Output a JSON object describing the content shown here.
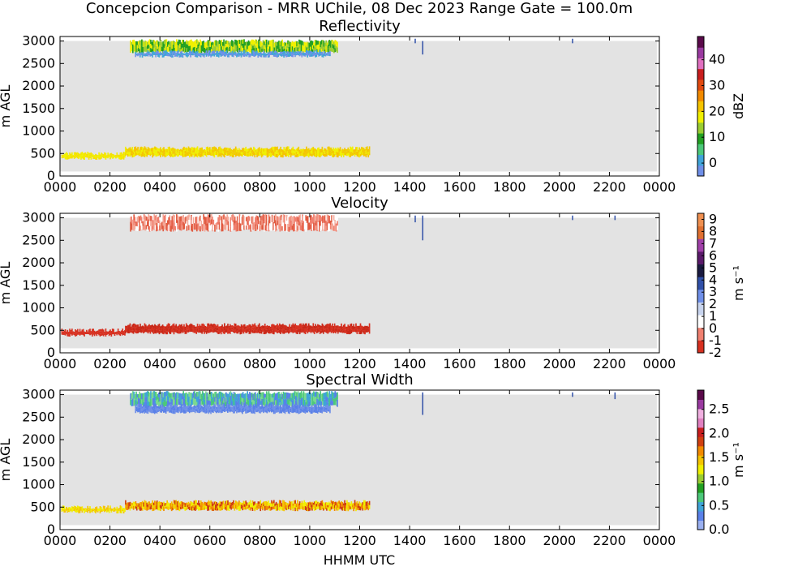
{
  "title": "Concepcion Comparison - MRR UChile, 08 Dec 2023 Range Gate = 100.0m",
  "xlabel": "HHMM UTC",
  "colors": {
    "background_fill": "#e3e3e3",
    "axes_frame": "#000000"
  },
  "chart_data": [
    {
      "type": "heatmap",
      "title": "Reflectivity",
      "ylabel": "m AGL",
      "xlim_hours": [
        0,
        24
      ],
      "ylim": [
        0,
        3100
      ],
      "x_ticks": [
        "0000",
        "0200",
        "0400",
        "0600",
        "0800",
        "1000",
        "1200",
        "1400",
        "1600",
        "1800",
        "2000",
        "2200",
        "0000"
      ],
      "y_ticks": [
        0,
        500,
        1000,
        1500,
        2000,
        2500,
        3000
      ],
      "colorbar": {
        "label": "dBZ",
        "range": [
          -5,
          49
        ],
        "ticks": [
          "0",
          "10",
          "20",
          "30",
          "40"
        ],
        "tick_values": [
          0,
          10,
          20,
          30,
          40
        ],
        "colors": [
          "#6f8fe8",
          "#3fa4d8",
          "#4cc87a",
          "#22a022",
          "#9acd32",
          "#f0f000",
          "#f5c400",
          "#f28a00",
          "#e24a10",
          "#c81e1e",
          "#e070c0",
          "#9a3aa0",
          "#5a0a4a"
        ]
      },
      "layers": [
        {
          "name": "upper-cloud",
          "start": 2.8,
          "end": 11.1,
          "bottom": 2750,
          "top": 3000,
          "colors": [
            "#22a022",
            "#9acd32",
            "#f0f000"
          ]
        },
        {
          "name": "upper-cloud-fringe",
          "start": 3.0,
          "end": 10.8,
          "bottom": 2660,
          "top": 2760,
          "colors": [
            "#3fa4d8",
            "#6f8fe8"
          ]
        },
        {
          "name": "low-cloud-early",
          "start": 0.05,
          "end": 2.6,
          "bottom": 390,
          "top": 500,
          "colors": [
            "#f0f000",
            "#f5e000"
          ]
        },
        {
          "name": "low-cloud-main",
          "start": 2.6,
          "end": 12.4,
          "bottom": 440,
          "top": 620,
          "colors": [
            "#f5c400",
            "#f0d000",
            "#f0f000"
          ]
        }
      ],
      "sparse_echoes": [
        {
          "x": 14.5,
          "bottom": 2700,
          "top": 3000
        },
        {
          "x": 14.2,
          "bottom": 2950,
          "top": 3050
        },
        {
          "x": 20.5,
          "bottom": 2950,
          "top": 3050
        }
      ]
    },
    {
      "type": "heatmap",
      "title": "Velocity",
      "ylabel": "m AGL",
      "xlim_hours": [
        0,
        24
      ],
      "ylim": [
        0,
        3100
      ],
      "x_ticks": [
        "0000",
        "0200",
        "0400",
        "0600",
        "0800",
        "1000",
        "1200",
        "1400",
        "1600",
        "1800",
        "2000",
        "2200",
        "0000"
      ],
      "y_ticks": [
        0,
        500,
        1000,
        1500,
        2000,
        2500,
        3000
      ],
      "colorbar": {
        "label": "m s⁻¹",
        "range": [
          -2,
          9.5
        ],
        "ticks": [
          "-2",
          "-1",
          "0",
          "1",
          "2",
          "3",
          "4",
          "5",
          "6",
          "7",
          "8",
          "9"
        ],
        "tick_values": [
          -2,
          -1,
          0,
          1,
          2,
          3,
          4,
          5,
          6,
          7,
          8,
          9
        ],
        "colors": [
          "#d73020",
          "#f08070",
          "#ffffff",
          "#c8d4ee",
          "#6f8fe8",
          "#3050a8",
          "#1a1a40",
          "#5a1a6a",
          "#a040a8",
          "#e07030",
          "#f09050"
        ]
      },
      "layers": [
        {
          "name": "upper-cloud",
          "start": 2.8,
          "end": 11.1,
          "bottom": 2720,
          "top": 3050,
          "colors": [
            "#e05a40",
            "#f08070",
            "#f4a898",
            "#ffffff"
          ]
        },
        {
          "name": "low-cloud-early",
          "start": 0.05,
          "end": 2.6,
          "bottom": 390,
          "top": 500,
          "colors": [
            "#d73020"
          ]
        },
        {
          "name": "low-cloud-main",
          "start": 2.6,
          "end": 12.4,
          "bottom": 440,
          "top": 620,
          "colors": [
            "#d73020",
            "#c82818"
          ]
        }
      ],
      "sparse_echoes": [
        {
          "x": 14.5,
          "bottom": 2500,
          "top": 3050
        },
        {
          "x": 14.2,
          "bottom": 2900,
          "top": 3050
        },
        {
          "x": 20.5,
          "bottom": 2950,
          "top": 3050
        },
        {
          "x": 22.2,
          "bottom": 2950,
          "top": 3050
        }
      ]
    },
    {
      "type": "heatmap",
      "title": "Spectral Width",
      "ylabel": "m AGL",
      "xlim_hours": [
        0,
        24
      ],
      "ylim": [
        0,
        3100
      ],
      "x_ticks": [
        "0000",
        "0200",
        "0400",
        "0600",
        "0800",
        "1000",
        "1200",
        "1400",
        "1600",
        "1800",
        "2000",
        "2200",
        "0000"
      ],
      "y_ticks": [
        0,
        500,
        1000,
        1500,
        2000,
        2500,
        3000
      ],
      "colorbar": {
        "label": "m s⁻¹",
        "range": [
          0,
          2.9
        ],
        "ticks": [
          "0.0",
          "0.5",
          "1.0",
          "1.5",
          "2.0",
          "2.5"
        ],
        "tick_values": [
          0,
          0.5,
          1.0,
          1.5,
          2.0,
          2.5
        ],
        "colors": [
          "#9ab0f0",
          "#5a80e8",
          "#3fa4d8",
          "#4cc87a",
          "#22a022",
          "#9acd32",
          "#f0f000",
          "#f5c400",
          "#f28a00",
          "#d04010",
          "#c81e1e",
          "#e080c0",
          "#f0b0e0",
          "#9a3aa0",
          "#5a0a4a"
        ]
      },
      "layers": [
        {
          "name": "upper-cloud",
          "start": 2.8,
          "end": 11.1,
          "bottom": 2750,
          "top": 3050,
          "colors": [
            "#5a80e8",
            "#3fa4d8",
            "#4cc87a",
            "#7ad890"
          ]
        },
        {
          "name": "upper-cloud-fringe",
          "start": 3.0,
          "end": 10.8,
          "bottom": 2600,
          "top": 2760,
          "colors": [
            "#5a80e8",
            "#6f8fe8"
          ]
        },
        {
          "name": "low-cloud-early",
          "start": 0.05,
          "end": 2.6,
          "bottom": 390,
          "top": 500,
          "colors": [
            "#f0f000",
            "#f5c400"
          ]
        },
        {
          "name": "low-cloud-main",
          "start": 2.6,
          "end": 12.4,
          "bottom": 440,
          "top": 620,
          "colors": [
            "#f5c400",
            "#f28a00",
            "#f0f000",
            "#d04010"
          ]
        }
      ],
      "sparse_echoes": [
        {
          "x": 14.5,
          "bottom": 2550,
          "top": 3050
        },
        {
          "x": 20.5,
          "bottom": 2950,
          "top": 3050
        },
        {
          "x": 22.2,
          "bottom": 2900,
          "top": 3050
        }
      ]
    }
  ]
}
